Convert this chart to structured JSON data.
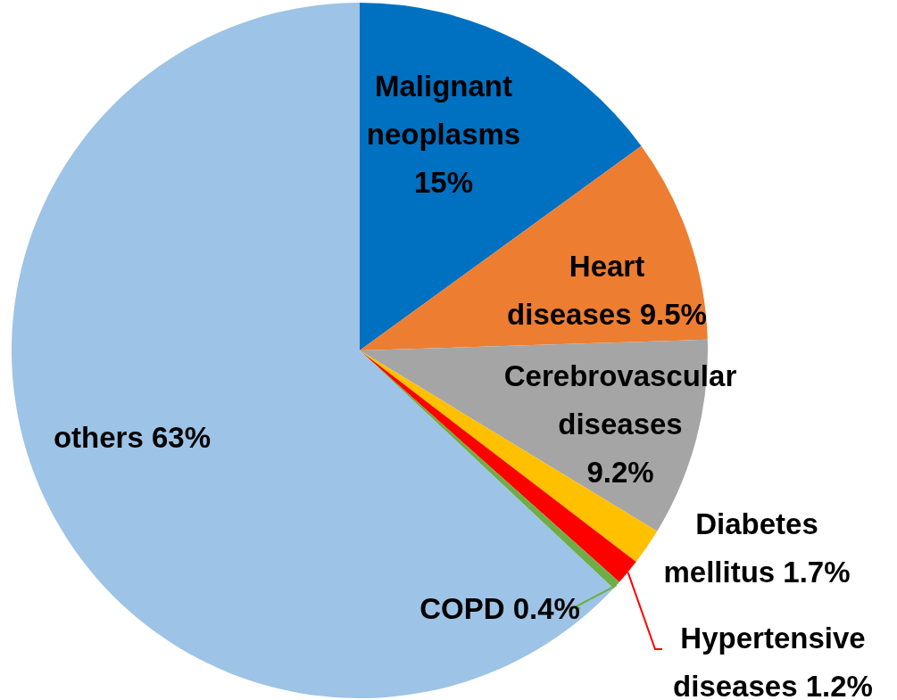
{
  "chart_data": {
    "type": "pie",
    "categories": [
      "Malignant neoplasms",
      "Heart diseases",
      "Cerebrovascular diseases",
      "Diabetes mellitus",
      "Hypertensive diseases",
      "COPD",
      "others"
    ],
    "values": [
      15,
      9.5,
      9.2,
      1.7,
      1.2,
      0.4,
      63
    ],
    "value_labels": [
      "15%",
      "9.5%",
      "9.2%",
      "1.7%",
      "1.2%",
      "0.4%",
      "63%"
    ],
    "colors": [
      "#0070c0",
      "#ed7d31",
      "#a5a5a5",
      "#ffc000",
      "#ff0000",
      "#70ad47",
      "#9dc3e6"
    ]
  }
}
